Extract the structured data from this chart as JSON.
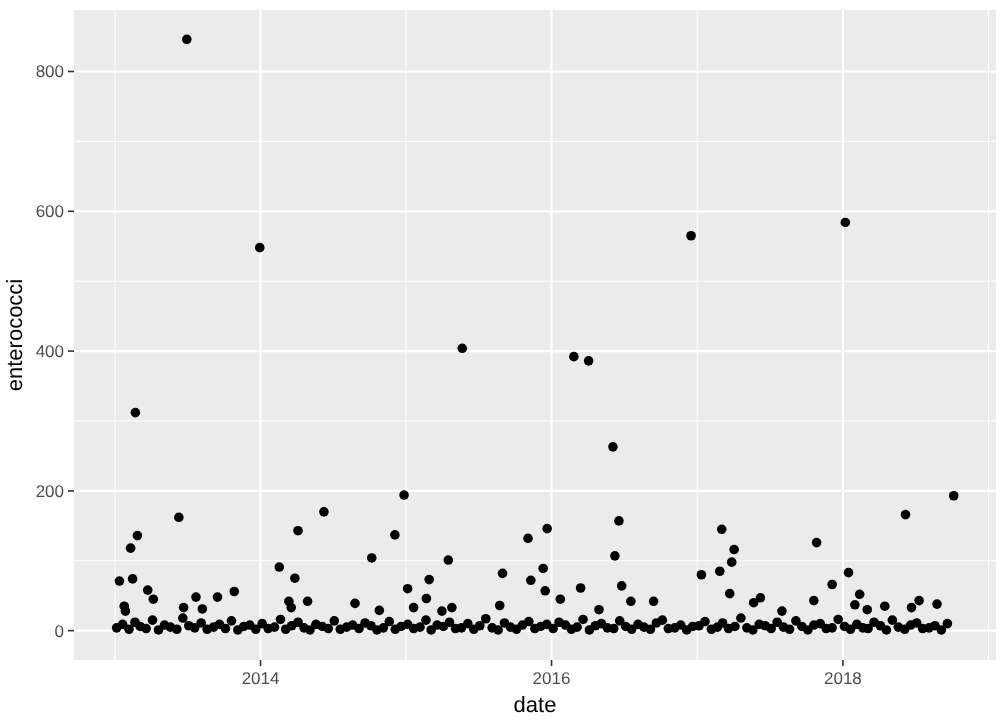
{
  "chart_data": {
    "type": "scatter",
    "xlabel": "date",
    "ylabel": "enterococci",
    "xlim": [
      "2012-09-20",
      "2019-01-20"
    ],
    "ylim": [
      -42,
      888
    ],
    "xticks": [
      {
        "value": "2014-01-01",
        "label": "2014"
      },
      {
        "value": "2016-01-01",
        "label": "2016"
      },
      {
        "value": "2018-01-01",
        "label": "2018"
      }
    ],
    "yticks": [
      0,
      200,
      400,
      600,
      800
    ],
    "grid": true,
    "marker": "circle",
    "series": [
      {
        "color": "#000000",
        "x": [
          "2013-01-05",
          "2013-01-20",
          "2013-02-05",
          "2013-02-20",
          "2013-03-05",
          "2013-03-20",
          "2013-04-05",
          "2013-04-20",
          "2013-05-05",
          "2013-05-20",
          "2013-06-05",
          "2013-06-20",
          "2013-07-05",
          "2013-07-20",
          "2013-08-05",
          "2013-08-20",
          "2013-09-05",
          "2013-09-20",
          "2013-10-05",
          "2013-10-20",
          "2013-11-05",
          "2013-11-20",
          "2013-12-05",
          "2013-12-20",
          "2014-01-05",
          "2014-01-20",
          "2014-02-05",
          "2014-02-20",
          "2014-03-05",
          "2014-03-20",
          "2014-04-05",
          "2014-04-20",
          "2014-05-05",
          "2014-05-20",
          "2014-06-05",
          "2014-06-20",
          "2014-07-05",
          "2014-07-20",
          "2014-08-05",
          "2014-08-20",
          "2014-09-05",
          "2014-09-20",
          "2014-10-05",
          "2014-10-20",
          "2014-11-05",
          "2014-11-20",
          "2014-12-05",
          "2014-12-20",
          "2015-01-05",
          "2015-01-20",
          "2015-02-05",
          "2015-02-20",
          "2015-03-05",
          "2015-03-20",
          "2015-04-05",
          "2015-04-20",
          "2015-05-05",
          "2015-05-20",
          "2015-06-05",
          "2015-06-20",
          "2015-07-05",
          "2015-07-20",
          "2015-08-05",
          "2015-08-20",
          "2015-09-05",
          "2015-09-20",
          "2015-10-05",
          "2015-10-20",
          "2015-11-05",
          "2015-11-20",
          "2015-12-05",
          "2015-12-20",
          "2016-01-05",
          "2016-01-20",
          "2016-02-05",
          "2016-02-20",
          "2016-03-05",
          "2016-03-20",
          "2016-04-05",
          "2016-04-20",
          "2016-05-05",
          "2016-05-20",
          "2016-06-05",
          "2016-06-20",
          "2016-07-05",
          "2016-07-20",
          "2016-08-05",
          "2016-08-20",
          "2016-09-05",
          "2016-09-20",
          "2016-10-05",
          "2016-10-20",
          "2016-11-05",
          "2016-11-20",
          "2016-12-05",
          "2016-12-20",
          "2017-01-05",
          "2017-01-20",
          "2017-02-05",
          "2017-02-20",
          "2017-03-05",
          "2017-03-20",
          "2017-04-05",
          "2017-04-20",
          "2017-05-05",
          "2017-05-20",
          "2017-06-05",
          "2017-06-20",
          "2017-07-05",
          "2017-07-20",
          "2017-08-05",
          "2017-08-20",
          "2017-09-05",
          "2017-09-20",
          "2017-10-05",
          "2017-10-20",
          "2017-11-05",
          "2017-11-20",
          "2017-12-05",
          "2017-12-20",
          "2018-01-05",
          "2018-01-20",
          "2018-02-05",
          "2018-02-20",
          "2018-03-05",
          "2018-03-20",
          "2018-04-05",
          "2018-04-20",
          "2018-05-05",
          "2018-05-20",
          "2018-06-05",
          "2018-06-20",
          "2018-07-05",
          "2018-07-20",
          "2018-08-05",
          "2018-08-20",
          "2018-09-05",
          "2018-09-20",
          "2013-06-30",
          "2013-12-30",
          "2016-12-16",
          "2018-01-07",
          "2015-05-22",
          "2016-02-26",
          "2016-04-03",
          "2016-06-03",
          "2013-02-21",
          "2013-06-10",
          "2013-02-26",
          "2013-02-09",
          "2013-01-12",
          "2013-02-14",
          "2013-01-24",
          "2013-01-27",
          "2013-03-24",
          "2013-04-07",
          "2013-07-23",
          "2013-08-08",
          "2013-09-15",
          "2013-10-27",
          "2013-06-22",
          "2014-02-17",
          "2014-04-05",
          "2014-06-09",
          "2014-03-28",
          "2014-03-13",
          "2014-04-29",
          "2014-03-19",
          "2014-10-07",
          "2014-08-26",
          "2014-10-26",
          "2014-12-27",
          "2014-12-04",
          "2015-04-17",
          "2015-02-28",
          "2015-01-05",
          "2015-02-21",
          "2015-01-20",
          "2015-04-01",
          "2015-04-26",
          "2015-08-31",
          "2015-11-03",
          "2015-12-21",
          "2015-11-10",
          "2015-12-11",
          "2015-12-16",
          "2015-08-24",
          "2016-01-23",
          "2016-03-14",
          "2016-06-08",
          "2016-06-18",
          "2016-06-25",
          "2016-07-18",
          "2016-09-13",
          "2016-04-29",
          "2018-10-06",
          "2018-06-07",
          "2017-10-27",
          "2017-03-03",
          "2017-04-03",
          "2017-03-28",
          "2017-02-26",
          "2017-01-11",
          "2017-03-23",
          "2017-05-22",
          "2017-06-08",
          "2017-08-01",
          "2017-12-05",
          "2018-01-15",
          "2017-10-20",
          "2018-02-12",
          "2018-01-31",
          "2018-03-03",
          "2018-04-16",
          "2018-06-22",
          "2018-07-11",
          "2018-08-25"
        ],
        "values": [
          4,
          9,
          2,
          12,
          6,
          3,
          15,
          1,
          8,
          5,
          2,
          18,
          7,
          4,
          11,
          2,
          5,
          9,
          3,
          14,
          1,
          6,
          8,
          2,
          10,
          3,
          5,
          16,
          2,
          7,
          12,
          4,
          1,
          9,
          6,
          3,
          14,
          2,
          5,
          8,
          3,
          11,
          7,
          1,
          4,
          13,
          2,
          6,
          9,
          3,
          5,
          15,
          1,
          8,
          6,
          12,
          3,
          4,
          10,
          2,
          7,
          17,
          4,
          1,
          11,
          5,
          2,
          8,
          13,
          3,
          6,
          9,
          3,
          12,
          8,
          2,
          5,
          16,
          1,
          7,
          10,
          4,
          3,
          14,
          6,
          2,
          9,
          5,
          2,
          11,
          15,
          3,
          4,
          8,
          1,
          6,
          7,
          13,
          2,
          5,
          11,
          3,
          6,
          18,
          4,
          1,
          9,
          7,
          3,
          12,
          5,
          2,
          14,
          6,
          1,
          8,
          10,
          3,
          4,
          16,
          6,
          2,
          9,
          4,
          3,
          12,
          7,
          1,
          15,
          5,
          2,
          8,
          11,
          3,
          4,
          7,
          1,
          10,
          846,
          548,
          565,
          584,
          404,
          392,
          386,
          263,
          312,
          162,
          136,
          118,
          71,
          74,
          35,
          28,
          58,
          45,
          48,
          31,
          48,
          56,
          33,
          91,
          143,
          170,
          75,
          42,
          42,
          33,
          104,
          39,
          29,
          194,
          137,
          101,
          73,
          60,
          46,
          33,
          28,
          33,
          82,
          132,
          146,
          72,
          89,
          57,
          36,
          45,
          61,
          107,
          157,
          64,
          42,
          42,
          30,
          193,
          166,
          126,
          145,
          116,
          98,
          85,
          80,
          53,
          40,
          47,
          28,
          66,
          83,
          43,
          52,
          37,
          30,
          35,
          33,
          43,
          38
        ]
      }
    ]
  }
}
